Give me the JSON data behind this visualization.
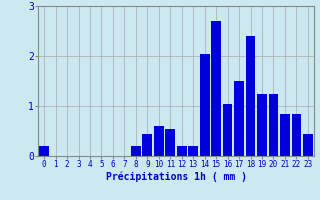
{
  "hours": [
    0,
    1,
    2,
    3,
    4,
    5,
    6,
    7,
    8,
    9,
    10,
    11,
    12,
    13,
    14,
    15,
    16,
    17,
    18,
    19,
    20,
    21,
    22,
    23
  ],
  "values": [
    0.2,
    0.0,
    0.0,
    0.0,
    0.0,
    0.0,
    0.0,
    0.0,
    0.2,
    0.45,
    0.6,
    0.55,
    0.2,
    0.2,
    2.05,
    2.7,
    1.05,
    1.5,
    2.4,
    1.25,
    1.25,
    0.85,
    0.85,
    0.45
  ],
  "bar_color": "#0000dd",
  "background_color": "#cce8f0",
  "grid_color": "#aaaaaa",
  "xlabel": "Précipitations 1h ( mm )",
  "xlabel_color": "#0000cc",
  "tick_color": "#0000cc",
  "ylim": [
    0,
    3
  ],
  "yticks": [
    0,
    1,
    2,
    3
  ],
  "figsize": [
    3.2,
    2.0
  ],
  "dpi": 100
}
